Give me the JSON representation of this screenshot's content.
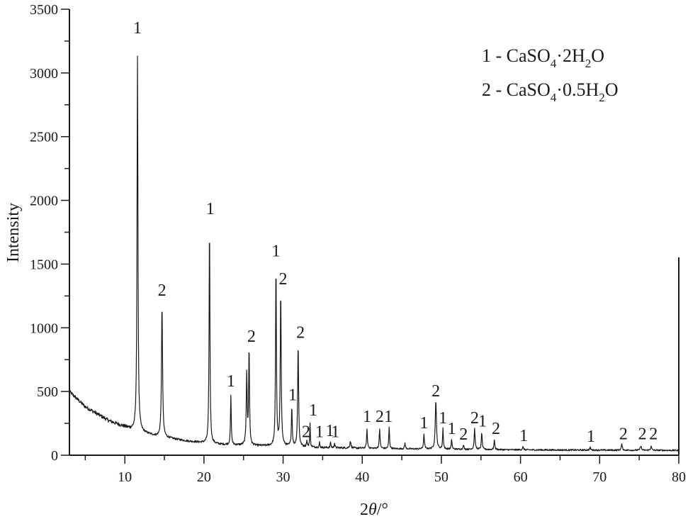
{
  "chart_data": {
    "type": "line",
    "title": "",
    "xlabel": "2θ/°",
    "ylabel": "Intensity",
    "xlim": [
      3,
      80
    ],
    "ylim": [
      0,
      3500
    ],
    "grid": false,
    "x_ticks": [
      10,
      20,
      30,
      40,
      50,
      60,
      70,
      80
    ],
    "y_ticks": [
      0,
      500,
      1000,
      1500,
      2000,
      2500,
      3000,
      3500
    ],
    "legend": {
      "position": "upper right",
      "entries": [
        {
          "id": "1",
          "label": "1 - CaSO4·2H2O",
          "prefix": "1 - CaSO",
          "sub1": "4",
          "mid": "·2H",
          "sub2": "2",
          "suffix": "O"
        },
        {
          "id": "2",
          "label": "2 - CaSO4·0.5H2O",
          "prefix": "2 - CaSO",
          "sub1": "4",
          "mid": "·0.5H",
          "sub2": "2",
          "suffix": "O"
        }
      ]
    },
    "background": {
      "description": "decaying amorphous background from ~500 at 3° to ~40 at 80°",
      "points": [
        [
          3,
          500
        ],
        [
          5,
          380
        ],
        [
          8,
          270
        ],
        [
          11,
          200
        ],
        [
          14,
          150
        ],
        [
          18,
          110
        ],
        [
          22,
          85
        ],
        [
          26,
          75
        ],
        [
          30,
          70
        ],
        [
          35,
          60
        ],
        [
          40,
          55
        ],
        [
          45,
          50
        ],
        [
          50,
          48
        ],
        [
          55,
          45
        ],
        [
          60,
          42
        ],
        [
          70,
          40
        ],
        [
          80,
          38
        ]
      ]
    },
    "peaks": [
      {
        "two_theta": 11.6,
        "intensity": 3120,
        "phase": "1",
        "width": 0.22
      },
      {
        "two_theta": 14.7,
        "intensity": 1180,
        "phase": "2",
        "width": 0.25
      },
      {
        "two_theta": 20.7,
        "intensity": 1820,
        "phase": "1",
        "width": 0.2
      },
      {
        "two_theta": 23.4,
        "intensity": 470,
        "phase": "1",
        "width": 0.18
      },
      {
        "two_theta": 25.4,
        "intensity": 640,
        "phase": "2",
        "width": 0.22,
        "unlabeled": true
      },
      {
        "two_theta": 25.7,
        "intensity": 840,
        "phase": "2",
        "width": 0.2
      },
      {
        "two_theta": 29.1,
        "intensity": 1500,
        "phase": "1",
        "width": 0.2
      },
      {
        "two_theta": 29.7,
        "intensity": 1290,
        "phase": "2",
        "width": 0.22
      },
      {
        "two_theta": 31.1,
        "intensity": 380,
        "phase": "1",
        "width": 0.2
      },
      {
        "two_theta": 31.9,
        "intensity": 880,
        "phase": "2",
        "width": 0.22
      },
      {
        "two_theta": 33.0,
        "intensity": 110,
        "phase": "2",
        "width": 0.2
      },
      {
        "two_theta": 33.4,
        "intensity": 250,
        "phase": "1",
        "width": 0.15
      },
      {
        "two_theta": 34.6,
        "intensity": 100,
        "phase": "1",
        "width": 0.15
      },
      {
        "two_theta": 36.0,
        "intensity": 105,
        "phase": "1",
        "width": 0.15
      },
      {
        "two_theta": 36.5,
        "intensity": 100,
        "phase": "1",
        "width": 0.15
      },
      {
        "two_theta": 38.5,
        "intensity": 110,
        "phase": "",
        "width": 0.25,
        "unlabeled": true
      },
      {
        "two_theta": 40.6,
        "intensity": 200,
        "phase": "1",
        "width": 0.2
      },
      {
        "two_theta": 42.2,
        "intensity": 205,
        "phase": "2",
        "width": 0.2
      },
      {
        "two_theta": 43.4,
        "intensity": 220,
        "phase": "1",
        "width": 0.18
      },
      {
        "two_theta": 45.4,
        "intensity": 95,
        "phase": "",
        "width": 0.2,
        "unlabeled": true
      },
      {
        "two_theta": 47.8,
        "intensity": 160,
        "phase": "1",
        "width": 0.22
      },
      {
        "two_theta": 49.3,
        "intensity": 430,
        "phase": "2",
        "width": 0.28
      },
      {
        "two_theta": 50.2,
        "intensity": 210,
        "phase": "1",
        "width": 0.18
      },
      {
        "two_theta": 51.3,
        "intensity": 125,
        "phase": "1",
        "width": 0.18
      },
      {
        "two_theta": 52.8,
        "intensity": 80,
        "phase": "2",
        "width": 0.2
      },
      {
        "two_theta": 54.2,
        "intensity": 210,
        "phase": "2",
        "width": 0.22
      },
      {
        "two_theta": 55.1,
        "intensity": 180,
        "phase": "1",
        "width": 0.2
      },
      {
        "two_theta": 56.7,
        "intensity": 120,
        "phase": "2",
        "width": 0.2
      },
      {
        "two_theta": 60.3,
        "intensity": 65,
        "phase": "1",
        "width": 0.25
      },
      {
        "two_theta": 68.8,
        "intensity": 60,
        "phase": "1",
        "width": 0.25
      },
      {
        "two_theta": 72.8,
        "intensity": 85,
        "phase": "2",
        "width": 0.25
      },
      {
        "two_theta": 75.2,
        "intensity": 75,
        "phase": "2",
        "width": 0.25
      },
      {
        "two_theta": 76.5,
        "intensity": 70,
        "phase": "2",
        "width": 0.25
      }
    ],
    "peak_labels": [
      {
        "text": "1",
        "x": 11.6,
        "y": 3300
      },
      {
        "text": "2",
        "x": 14.7,
        "y": 1240
      },
      {
        "text": "1",
        "x": 20.8,
        "y": 1880
      },
      {
        "text": "1",
        "x": 23.4,
        "y": 530
      },
      {
        "text": "2",
        "x": 26.0,
        "y": 880
      },
      {
        "text": "1",
        "x": 29.1,
        "y": 1550
      },
      {
        "text": "2",
        "x": 30.0,
        "y": 1330
      },
      {
        "text": "1",
        "x": 31.2,
        "y": 420
      },
      {
        "text": "2",
        "x": 32.2,
        "y": 910
      },
      {
        "text": "2",
        "x": 32.9,
        "y": 130
      },
      {
        "text": "1",
        "x": 33.8,
        "y": 300
      },
      {
        "text": "1",
        "x": 34.6,
        "y": 130
      },
      {
        "text": "1",
        "x": 35.9,
        "y": 140
      },
      {
        "text": "1",
        "x": 36.6,
        "y": 130
      },
      {
        "text": "1",
        "x": 40.6,
        "y": 250
      },
      {
        "text": "2",
        "x": 42.2,
        "y": 250
      },
      {
        "text": "1",
        "x": 43.3,
        "y": 250
      },
      {
        "text": "1",
        "x": 47.8,
        "y": 200
      },
      {
        "text": "2",
        "x": 49.3,
        "y": 450
      },
      {
        "text": "1",
        "x": 50.2,
        "y": 240
      },
      {
        "text": "1",
        "x": 51.3,
        "y": 155
      },
      {
        "text": "2",
        "x": 52.8,
        "y": 110
      },
      {
        "text": "2",
        "x": 54.2,
        "y": 240
      },
      {
        "text": "1",
        "x": 55.2,
        "y": 215
      },
      {
        "text": "2",
        "x": 56.9,
        "y": 155
      },
      {
        "text": "1",
        "x": 60.4,
        "y": 100
      },
      {
        "text": "1",
        "x": 68.9,
        "y": 95
      },
      {
        "text": "2",
        "x": 73.0,
        "y": 115
      },
      {
        "text": "2",
        "x": 75.4,
        "y": 115
      },
      {
        "text": "2",
        "x": 76.8,
        "y": 115
      }
    ],
    "style": {
      "line_color": "#1a1a1a",
      "axis_color": "#1a1a1a",
      "background": "#ffffff"
    }
  }
}
